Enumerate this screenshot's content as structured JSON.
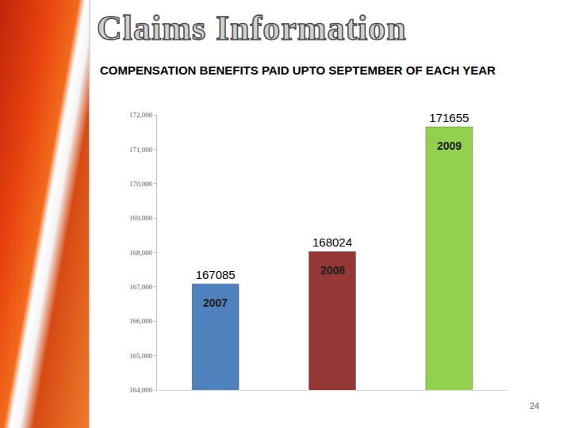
{
  "chart_data": {
    "type": "bar",
    "title": "Claims Information",
    "subtitle": "COMPENSATION BENEFITS PAID UPTO SEPTEMBER OF EACH YEAR",
    "categories": [
      "2007",
      "2008",
      "2009"
    ],
    "values": [
      167085,
      168024,
      171655
    ],
    "colors": [
      "#4f81bd",
      "#953735",
      "#92d050"
    ],
    "ylim": [
      164000,
      172000
    ],
    "yticks": [
      {
        "value": 164000,
        "label": "164,000"
      },
      {
        "value": 165000,
        "label": "165,000"
      },
      {
        "value": 166000,
        "label": "166,000"
      },
      {
        "value": 167000,
        "label": "167,000"
      },
      {
        "value": 168000,
        "label": "168,000"
      },
      {
        "value": 169000,
        "label": "169,000"
      },
      {
        "value": 170000,
        "label": "170,000"
      },
      {
        "value": 171000,
        "label": "171,000"
      },
      {
        "value": 172000,
        "label": "172,000"
      }
    ],
    "grid": false,
    "data_labels": true,
    "tick_labels": "y",
    "annotations": [
      "24"
    ]
  }
}
